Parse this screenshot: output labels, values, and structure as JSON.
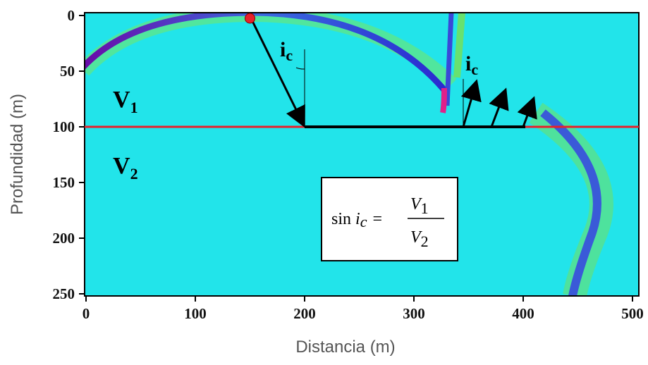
{
  "chart_data": {
    "type": "image",
    "xlabel": "Distancia (m)",
    "ylabel": "Profundidad (m)",
    "xlim": [
      0,
      500
    ],
    "ylim": [
      0,
      250
    ],
    "xticks": [
      0,
      100,
      200,
      300,
      400,
      500
    ],
    "yticks": [
      0,
      50,
      100,
      150,
      200,
      250
    ],
    "interface_depth": 100,
    "interface_color": "#e8202a",
    "background": "#22e4ea",
    "source": {
      "x": 150,
      "y": 0
    },
    "labels": {
      "v1": [
        "V",
        "1"
      ],
      "v2": [
        "V",
        "2"
      ],
      "ic": [
        "i",
        "c"
      ]
    },
    "formula": {
      "lhs": "sin",
      "angle": [
        "i",
        "c"
      ],
      "eq": "=",
      "num": [
        "V",
        "1"
      ],
      "den": [
        "V",
        "2"
      ]
    }
  }
}
